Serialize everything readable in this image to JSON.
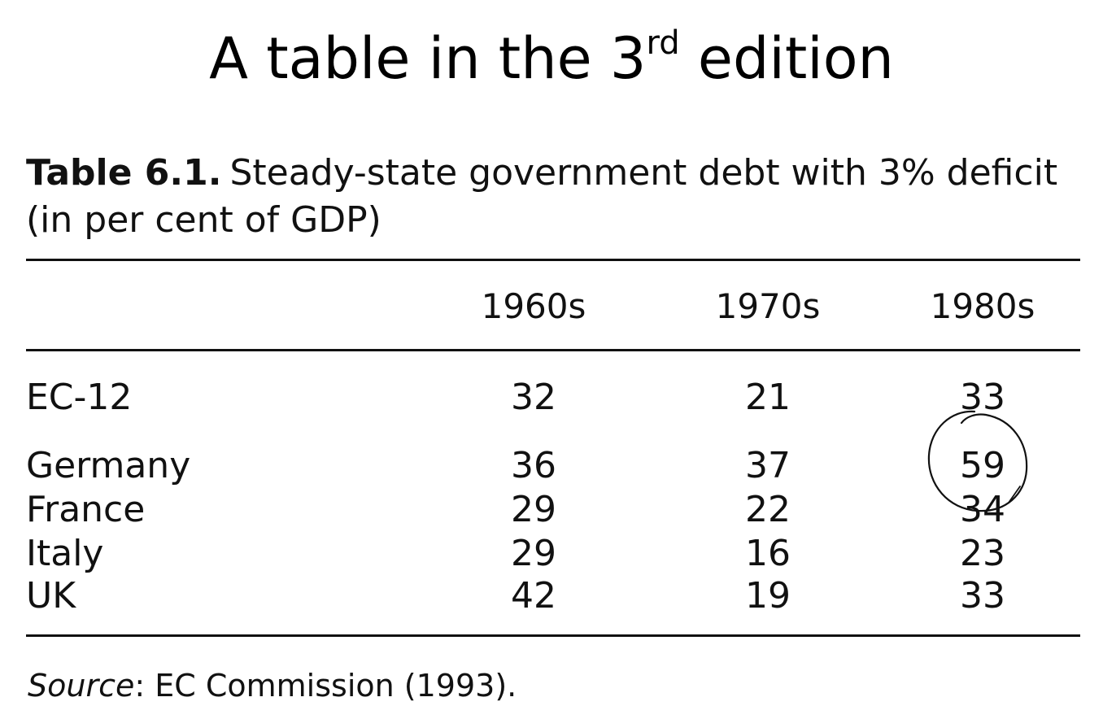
{
  "slide": {
    "title_main": "A table in the 3",
    "title_sup": "rd",
    "title_end": " edition"
  },
  "table": {
    "caption_label": "Table 6.1.",
    "caption_text": "Steady-state government debt with 3% deficit (in per cent of GDP)",
    "headers": [
      "1960s",
      "1970s",
      "1980s"
    ],
    "rows": [
      {
        "label": "EC-12",
        "values": [
          "32",
          "21",
          "33"
        ]
      },
      {
        "label": "Germany",
        "values": [
          "36",
          "37",
          "59"
        ]
      },
      {
        "label": "France",
        "values": [
          "29",
          "22",
          "34"
        ]
      },
      {
        "label": "Italy",
        "values": [
          "29",
          "16",
          "23"
        ]
      },
      {
        "label": "UK",
        "values": [
          "42",
          "19",
          "33"
        ]
      }
    ],
    "source_label": "Source",
    "source_text": ": EC Commission (1993)."
  },
  "annotation": {
    "type": "hand-drawn circle",
    "target": "Germany 1980s",
    "color": "#111111"
  }
}
